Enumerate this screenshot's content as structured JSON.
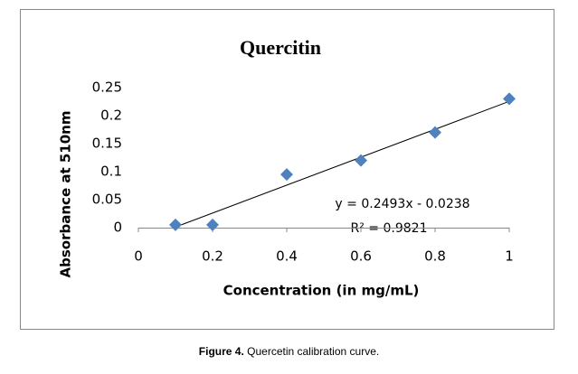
{
  "chart_data": {
    "type": "scatter",
    "title": "Quercitin",
    "x_label": "Concentration (in mg/mL)",
    "y_label": "Absorbance at 510nm",
    "series": [
      {
        "name": "Absorbance",
        "color": "#4f81bd",
        "x": [
          0.1,
          0.2,
          0.4,
          0.6,
          0.8,
          1
        ],
        "values": [
          0.005,
          0.005,
          0.095,
          0.12,
          0.17,
          0.23
        ]
      }
    ],
    "trendline": {
      "color": "#000000",
      "x": [
        0.0955,
        1
      ],
      "values": [
        0,
        0.2255
      ]
    },
    "annotations": [
      "y = 0.2493x - 0.0238",
      "R² = 0.9821"
    ],
    "xlim": [
      0,
      1
    ],
    "xticks": [
      0,
      0.2,
      0.4,
      0.6,
      0.8,
      1
    ],
    "ylim": [
      0,
      0.25
    ],
    "yticks": [
      0,
      0.05,
      0.1,
      0.15,
      0.2,
      0.25
    ]
  },
  "caption": {
    "label": "Figure 4.",
    "text": "Quercetin calibration curve."
  }
}
